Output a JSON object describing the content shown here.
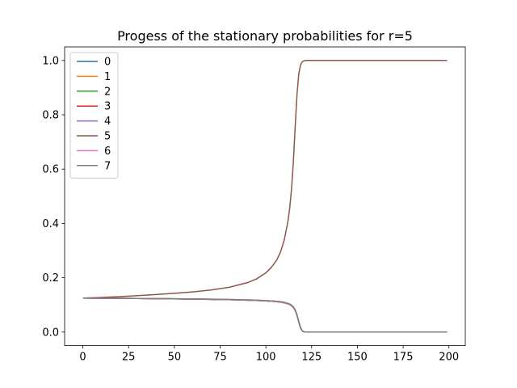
{
  "chart_data": {
    "type": "line",
    "title": "Progess of the stationary probabilities for r=5",
    "xlabel": "",
    "ylabel": "",
    "xlim": [
      -9.95,
      208.95
    ],
    "ylim": [
      -0.05,
      1.05
    ],
    "x_ticks": [
      0,
      25,
      50,
      75,
      100,
      125,
      150,
      175,
      200
    ],
    "y_ticks": [
      0.0,
      0.2,
      0.4,
      0.6,
      0.8,
      1.0
    ],
    "x_tick_labels": [
      "0",
      "25",
      "50",
      "75",
      "100",
      "125",
      "150",
      "175",
      "200"
    ],
    "y_tick_labels": [
      "0.0",
      "0.2",
      "0.4",
      "0.6",
      "0.8",
      "1.0"
    ],
    "grid": false,
    "legend_position": "top-left",
    "x": [
      0,
      10,
      20,
      30,
      40,
      50,
      60,
      70,
      80,
      90,
      95,
      100,
      103,
      106,
      108,
      110,
      112,
      113,
      114,
      115,
      116,
      117,
      118,
      119,
      120,
      121,
      122,
      125,
      130,
      140,
      150,
      160,
      170,
      180,
      190,
      199
    ],
    "series": [
      {
        "name": "0",
        "color": "#1f77b4",
        "values": [
          0.125,
          0.1245,
          0.124,
          0.1235,
          0.1228,
          0.1221,
          0.1213,
          0.1204,
          0.1192,
          0.1175,
          0.1164,
          0.1148,
          0.1136,
          0.1118,
          0.1102,
          0.1078,
          0.104,
          0.1012,
          0.097,
          0.0905,
          0.08,
          0.062,
          0.036,
          0.014,
          0.003,
          0.0005,
          0.0001,
          0.0,
          0.0,
          0.0,
          0.0,
          0.0,
          0.0,
          0.0,
          0.0,
          0.0
        ]
      },
      {
        "name": "1",
        "color": "#ff7f0e",
        "values": [
          0.125,
          0.1245,
          0.124,
          0.1235,
          0.1228,
          0.1221,
          0.1213,
          0.1204,
          0.1192,
          0.1175,
          0.1164,
          0.1148,
          0.1136,
          0.1118,
          0.1102,
          0.1078,
          0.104,
          0.1012,
          0.097,
          0.0905,
          0.08,
          0.062,
          0.036,
          0.014,
          0.003,
          0.0005,
          0.0001,
          0.0,
          0.0,
          0.0,
          0.0,
          0.0,
          0.0,
          0.0,
          0.0,
          0.0
        ]
      },
      {
        "name": "2",
        "color": "#2ca02c",
        "values": [
          0.125,
          0.1245,
          0.124,
          0.1235,
          0.1228,
          0.1221,
          0.1213,
          0.1204,
          0.1192,
          0.1175,
          0.1164,
          0.1148,
          0.1136,
          0.1118,
          0.1102,
          0.1078,
          0.104,
          0.1012,
          0.097,
          0.0905,
          0.08,
          0.062,
          0.036,
          0.014,
          0.003,
          0.0005,
          0.0001,
          0.0,
          0.0,
          0.0,
          0.0,
          0.0,
          0.0,
          0.0,
          0.0,
          0.0
        ]
      },
      {
        "name": "3",
        "color": "#d62728",
        "values": [
          0.125,
          0.1245,
          0.124,
          0.1235,
          0.1228,
          0.1221,
          0.1213,
          0.1204,
          0.1192,
          0.1175,
          0.1164,
          0.1148,
          0.1136,
          0.1118,
          0.1102,
          0.1078,
          0.104,
          0.1012,
          0.097,
          0.0905,
          0.08,
          0.062,
          0.036,
          0.014,
          0.003,
          0.0005,
          0.0001,
          0.0,
          0.0,
          0.0,
          0.0,
          0.0,
          0.0,
          0.0,
          0.0,
          0.0
        ]
      },
      {
        "name": "4",
        "color": "#9467bd",
        "values": [
          0.125,
          0.1247,
          0.1243,
          0.1238,
          0.1232,
          0.1226,
          0.1219,
          0.1211,
          0.12,
          0.1184,
          0.1174,
          0.116,
          0.1149,
          0.1132,
          0.1117,
          0.1094,
          0.1058,
          0.1031,
          0.099,
          0.0925,
          0.082,
          0.064,
          0.0375,
          0.015,
          0.0035,
          0.0006,
          0.0001,
          0.0,
          0.0,
          0.0,
          0.0,
          0.0,
          0.0,
          0.0,
          0.0,
          0.0
        ]
      },
      {
        "name": "5",
        "color": "#8c564b",
        "values": [
          0.125,
          0.1275,
          0.1305,
          0.134,
          0.138,
          0.1425,
          0.148,
          0.155,
          0.165,
          0.182,
          0.196,
          0.218,
          0.238,
          0.266,
          0.295,
          0.338,
          0.405,
          0.455,
          0.525,
          0.625,
          0.755,
          0.875,
          0.952,
          0.985,
          0.996,
          0.999,
          1.0,
          1.0,
          1.0,
          1.0,
          1.0,
          1.0,
          1.0,
          1.0,
          1.0,
          1.0
        ]
      },
      {
        "name": "6",
        "color": "#e377c2",
        "values": [
          0.125,
          0.1245,
          0.124,
          0.1235,
          0.1228,
          0.1221,
          0.1213,
          0.1204,
          0.1192,
          0.1175,
          0.1164,
          0.1148,
          0.1136,
          0.1118,
          0.1102,
          0.1078,
          0.104,
          0.1012,
          0.097,
          0.0905,
          0.08,
          0.062,
          0.036,
          0.014,
          0.003,
          0.0005,
          0.0001,
          0.0,
          0.0,
          0.0,
          0.0,
          0.0,
          0.0,
          0.0,
          0.0,
          0.0
        ]
      },
      {
        "name": "7",
        "color": "#7f7f7f",
        "values": [
          0.125,
          0.1247,
          0.1243,
          0.1238,
          0.1232,
          0.1226,
          0.1219,
          0.1211,
          0.12,
          0.1184,
          0.1174,
          0.116,
          0.1149,
          0.1132,
          0.1117,
          0.1094,
          0.1058,
          0.1031,
          0.099,
          0.0925,
          0.082,
          0.064,
          0.0375,
          0.015,
          0.0035,
          0.0006,
          0.0001,
          0.0,
          0.0,
          0.0,
          0.0,
          0.0,
          0.0,
          0.0,
          0.0,
          0.0
        ]
      }
    ]
  }
}
